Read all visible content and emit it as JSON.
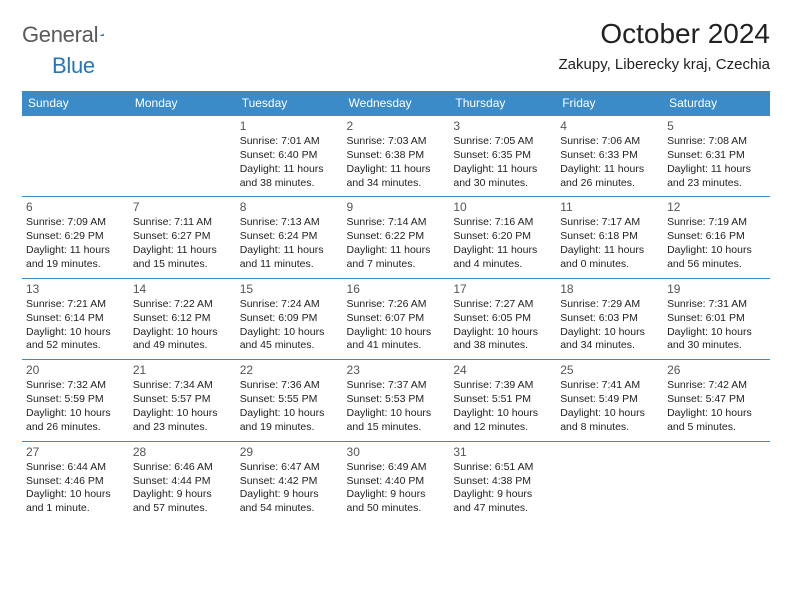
{
  "logo": {
    "word1": "General",
    "word2": "Blue"
  },
  "title": "October 2024",
  "location": "Zakupy, Liberecky kraj, Czechia",
  "colors": {
    "header_bg": "#3b8bc8",
    "header_text": "#ffffff",
    "border": "#3b8bc8",
    "daynum": "#555555",
    "body_text": "#222222",
    "logo_gray": "#5a5a5a",
    "logo_blue": "#2676b8"
  },
  "typography": {
    "title_fontsize": 28,
    "location_fontsize": 15,
    "dayhead_fontsize": 12,
    "daynum_fontsize": 12,
    "cell_fontsize": 10.5
  },
  "day_headers": [
    "Sunday",
    "Monday",
    "Tuesday",
    "Wednesday",
    "Thursday",
    "Friday",
    "Saturday"
  ],
  "weeks": [
    [
      null,
      null,
      {
        "n": "1",
        "sr": "7:01 AM",
        "ss": "6:40 PM",
        "dl": "11 hours and 38 minutes."
      },
      {
        "n": "2",
        "sr": "7:03 AM",
        "ss": "6:38 PM",
        "dl": "11 hours and 34 minutes."
      },
      {
        "n": "3",
        "sr": "7:05 AM",
        "ss": "6:35 PM",
        "dl": "11 hours and 30 minutes."
      },
      {
        "n": "4",
        "sr": "7:06 AM",
        "ss": "6:33 PM",
        "dl": "11 hours and 26 minutes."
      },
      {
        "n": "5",
        "sr": "7:08 AM",
        "ss": "6:31 PM",
        "dl": "11 hours and 23 minutes."
      }
    ],
    [
      {
        "n": "6",
        "sr": "7:09 AM",
        "ss": "6:29 PM",
        "dl": "11 hours and 19 minutes."
      },
      {
        "n": "7",
        "sr": "7:11 AM",
        "ss": "6:27 PM",
        "dl": "11 hours and 15 minutes."
      },
      {
        "n": "8",
        "sr": "7:13 AM",
        "ss": "6:24 PM",
        "dl": "11 hours and 11 minutes."
      },
      {
        "n": "9",
        "sr": "7:14 AM",
        "ss": "6:22 PM",
        "dl": "11 hours and 7 minutes."
      },
      {
        "n": "10",
        "sr": "7:16 AM",
        "ss": "6:20 PM",
        "dl": "11 hours and 4 minutes."
      },
      {
        "n": "11",
        "sr": "7:17 AM",
        "ss": "6:18 PM",
        "dl": "11 hours and 0 minutes."
      },
      {
        "n": "12",
        "sr": "7:19 AM",
        "ss": "6:16 PM",
        "dl": "10 hours and 56 minutes."
      }
    ],
    [
      {
        "n": "13",
        "sr": "7:21 AM",
        "ss": "6:14 PM",
        "dl": "10 hours and 52 minutes."
      },
      {
        "n": "14",
        "sr": "7:22 AM",
        "ss": "6:12 PM",
        "dl": "10 hours and 49 minutes."
      },
      {
        "n": "15",
        "sr": "7:24 AM",
        "ss": "6:09 PM",
        "dl": "10 hours and 45 minutes."
      },
      {
        "n": "16",
        "sr": "7:26 AM",
        "ss": "6:07 PM",
        "dl": "10 hours and 41 minutes."
      },
      {
        "n": "17",
        "sr": "7:27 AM",
        "ss": "6:05 PM",
        "dl": "10 hours and 38 minutes."
      },
      {
        "n": "18",
        "sr": "7:29 AM",
        "ss": "6:03 PM",
        "dl": "10 hours and 34 minutes."
      },
      {
        "n": "19",
        "sr": "7:31 AM",
        "ss": "6:01 PM",
        "dl": "10 hours and 30 minutes."
      }
    ],
    [
      {
        "n": "20",
        "sr": "7:32 AM",
        "ss": "5:59 PM",
        "dl": "10 hours and 26 minutes."
      },
      {
        "n": "21",
        "sr": "7:34 AM",
        "ss": "5:57 PM",
        "dl": "10 hours and 23 minutes."
      },
      {
        "n": "22",
        "sr": "7:36 AM",
        "ss": "5:55 PM",
        "dl": "10 hours and 19 minutes."
      },
      {
        "n": "23",
        "sr": "7:37 AM",
        "ss": "5:53 PM",
        "dl": "10 hours and 15 minutes."
      },
      {
        "n": "24",
        "sr": "7:39 AM",
        "ss": "5:51 PM",
        "dl": "10 hours and 12 minutes."
      },
      {
        "n": "25",
        "sr": "7:41 AM",
        "ss": "5:49 PM",
        "dl": "10 hours and 8 minutes."
      },
      {
        "n": "26",
        "sr": "7:42 AM",
        "ss": "5:47 PM",
        "dl": "10 hours and 5 minutes."
      }
    ],
    [
      {
        "n": "27",
        "sr": "6:44 AM",
        "ss": "4:46 PM",
        "dl": "10 hours and 1 minute."
      },
      {
        "n": "28",
        "sr": "6:46 AM",
        "ss": "4:44 PM",
        "dl": "9 hours and 57 minutes."
      },
      {
        "n": "29",
        "sr": "6:47 AM",
        "ss": "4:42 PM",
        "dl": "9 hours and 54 minutes."
      },
      {
        "n": "30",
        "sr": "6:49 AM",
        "ss": "4:40 PM",
        "dl": "9 hours and 50 minutes."
      },
      {
        "n": "31",
        "sr": "6:51 AM",
        "ss": "4:38 PM",
        "dl": "9 hours and 47 minutes."
      },
      null,
      null
    ]
  ],
  "labels": {
    "sunrise": "Sunrise: ",
    "sunset": "Sunset: ",
    "daylight": "Daylight: "
  }
}
